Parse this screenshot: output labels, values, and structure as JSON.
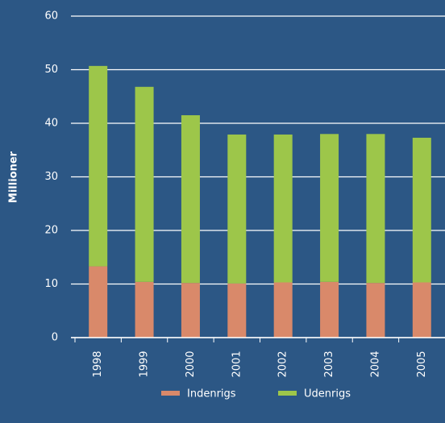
{
  "chart_data": {
    "type": "stacked-bar",
    "y_label": "Millioner",
    "categories": [
      "1998",
      "1999",
      "2000",
      "2001",
      "2002",
      "2003",
      "2004",
      "2005"
    ],
    "series": [
      {
        "name": "Indenrigs",
        "color": "#d9896a",
        "values": [
          13.3,
          10.4,
          10.2,
          10.1,
          10.3,
          10.4,
          10.2,
          10.3
        ]
      },
      {
        "name": "Udenrigs",
        "color": "#9dc64a",
        "values": [
          37.4,
          36.4,
          31.3,
          27.8,
          27.6,
          27.6,
          27.8,
          27.0
        ]
      }
    ],
    "ylim": [
      0,
      60
    ],
    "yticks": [
      0,
      10,
      20,
      30,
      40,
      50,
      60
    ],
    "grid": true
  }
}
